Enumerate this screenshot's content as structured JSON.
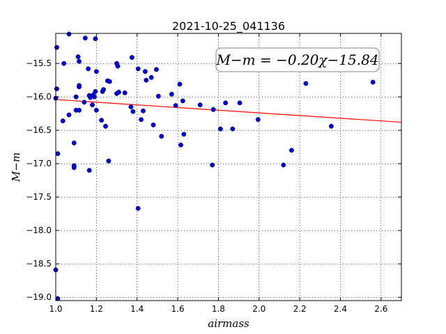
{
  "chart_data": {
    "type": "scatter",
    "title": "2021-10-25_041136",
    "xlabel": "airmass",
    "ylabel": "M−m",
    "xlim": [
      1.0,
      2.7
    ],
    "ylim": [
      -19.05,
      -15.05
    ],
    "xticks": [
      1.0,
      1.2,
      1.4,
      1.6,
      1.8,
      2.0,
      2.2,
      2.4,
      2.6
    ],
    "yticks": [
      -15.5,
      -16.0,
      -16.5,
      -17.0,
      -17.5,
      -18.0,
      -18.5,
      -19.0
    ],
    "xtick_labels": [
      "1.0",
      "1.2",
      "1.4",
      "1.6",
      "1.8",
      "2.0",
      "2.2",
      "2.4",
      "2.6"
    ],
    "ytick_labels": [
      "−15.5",
      "−16.0",
      "−16.5",
      "−17.0",
      "−17.5",
      "−18.0",
      "−18.5",
      "−19.0"
    ],
    "grid": true,
    "annotation": "M−m = −0.20χ−15.84",
    "fit": {
      "slope": -0.2,
      "intercept": -15.84,
      "color": "#ff0000"
    },
    "point_color": "#0000cc",
    "points": [
      [
        1.065,
        -15.06
      ],
      [
        1.145,
        -15.12
      ],
      [
        1.195,
        -15.13
      ],
      [
        1.005,
        -15.26
      ],
      [
        1.04,
        -15.5
      ],
      [
        1.11,
        -15.4
      ],
      [
        1.115,
        -15.47
      ],
      [
        1.005,
        -15.88
      ],
      [
        1.0,
        -16.02
      ],
      [
        1.16,
        -15.58
      ],
      [
        1.2,
        -15.62
      ],
      [
        1.115,
        -15.83
      ],
      [
        1.115,
        -15.85
      ],
      [
        1.14,
        -16.08
      ],
      [
        1.165,
        -15.98
      ],
      [
        1.17,
        -16.01
      ],
      [
        1.185,
        -15.97
      ],
      [
        1.19,
        -16.0
      ],
      [
        1.195,
        -15.92
      ],
      [
        1.18,
        -16.12
      ],
      [
        1.1,
        -16.0
      ],
      [
        1.1,
        -16.2
      ],
      [
        1.115,
        -16.2
      ],
      [
        1.065,
        -16.27
      ],
      [
        1.035,
        -16.36
      ],
      [
        1.2,
        -16.2
      ],
      [
        1.225,
        -16.35
      ],
      [
        1.23,
        -15.92
      ],
      [
        1.235,
        -15.89
      ],
      [
        1.255,
        -15.76
      ],
      [
        1.265,
        -15.77
      ],
      [
        1.245,
        -16.44
      ],
      [
        1.3,
        -15.5
      ],
      [
        1.305,
        -15.54
      ],
      [
        1.3,
        -15.95
      ],
      [
        1.31,
        -15.93
      ],
      [
        1.34,
        -15.94
      ],
      [
        1.375,
        -15.41
      ],
      [
        1.37,
        -16.15
      ],
      [
        1.38,
        -16.22
      ],
      [
        1.405,
        -15.58
      ],
      [
        1.44,
        -15.62
      ],
      [
        1.445,
        -15.75
      ],
      [
        1.47,
        -15.71
      ],
      [
        1.495,
        -15.59
      ],
      [
        1.505,
        -15.99
      ],
      [
        1.42,
        -16.34
      ],
      [
        1.43,
        -16.21
      ],
      [
        1.48,
        -16.42
      ],
      [
        1.52,
        -16.59
      ],
      [
        1.57,
        -15.96
      ],
      [
        1.59,
        -16.13
      ],
      [
        1.61,
        -15.81
      ],
      [
        1.625,
        -16.06
      ],
      [
        1.63,
        -16.56
      ],
      [
        1.615,
        -16.72
      ],
      [
        1.71,
        -16.12
      ],
      [
        1.775,
        -16.19
      ],
      [
        1.81,
        -16.48
      ],
      [
        1.835,
        -16.09
      ],
      [
        1.87,
        -16.48
      ],
      [
        1.905,
        -16.09
      ],
      [
        1.995,
        -16.34
      ],
      [
        1.01,
        -16.85
      ],
      [
        1.09,
        -16.69
      ],
      [
        1.09,
        -17.03
      ],
      [
        1.09,
        -17.06
      ],
      [
        1.165,
        -17.1
      ],
      [
        1.26,
        -16.96
      ],
      [
        1.77,
        -17.02
      ],
      [
        2.12,
        -17.02
      ],
      [
        2.16,
        -16.8
      ],
      [
        2.23,
        -15.8
      ],
      [
        2.355,
        -16.44
      ],
      [
        2.56,
        -15.78
      ],
      [
        1.405,
        -17.67
      ],
      [
        1.0,
        -18.59
      ],
      [
        1.01,
        -19.02
      ]
    ]
  }
}
